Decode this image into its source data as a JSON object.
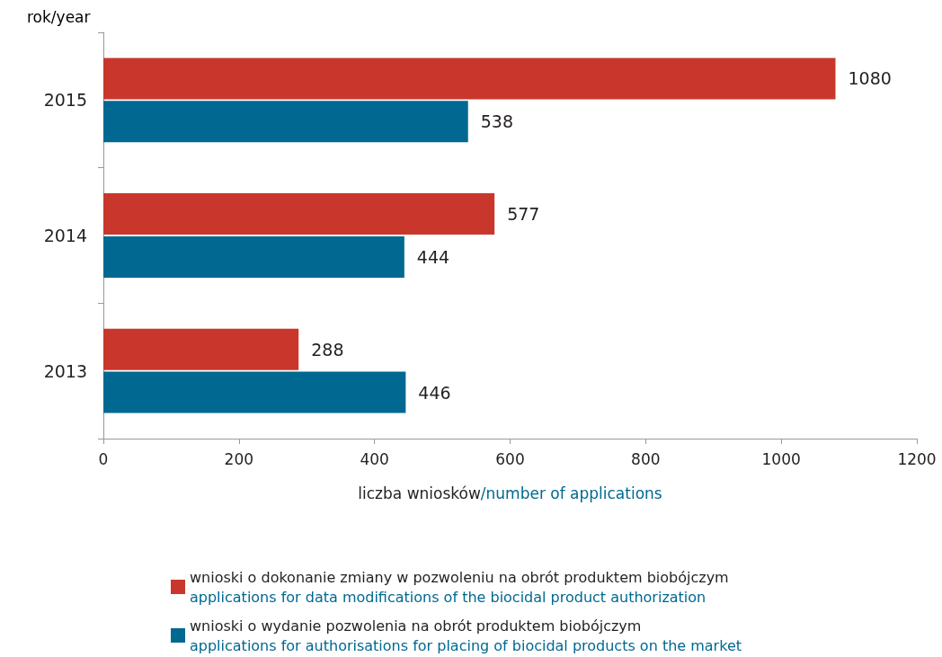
{
  "chart_data": {
    "type": "bar",
    "orientation": "horizontal",
    "ylabel": "rok/year",
    "xlabel": "liczba wniosków/number of applications",
    "categories": [
      "2015",
      "2014",
      "2013"
    ],
    "series": [
      {
        "name": "wnioski o dokonanie zmiany w pozwoleniu na obrót produktem biobójczym\napplications for data modifications of the biocidal product authorization",
        "color": "#c9372c",
        "values": [
          1080,
          577,
          288
        ]
      },
      {
        "name": "wnioski o wydanie pozwolenia na obrót produktem biobójczym\napplications for authorisations for placing of biocidal products on the market",
        "color": "#006891",
        "values": [
          538,
          444,
          446
        ]
      }
    ],
    "xlim": [
      0,
      1200
    ],
    "xticks": [
      0,
      200,
      400,
      600,
      800,
      1000,
      1200
    ],
    "data_labels": true,
    "grid": false,
    "legend": "bottom"
  }
}
